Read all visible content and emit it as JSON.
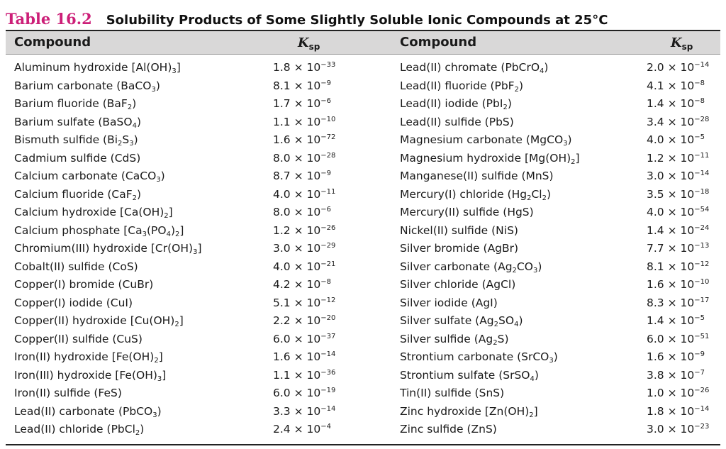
{
  "table": {
    "number": "Table 16.2",
    "title": "Solubility Products of Some Slightly Soluble Ionic Compounds at 25°C",
    "headers": {
      "compound": "Compound",
      "ksp_symbol": "K",
      "ksp_sub": "sp"
    },
    "left": [
      {
        "compound": "Aluminum hydroxide [Al(OH)<sub>3</sub>]",
        "ksp": "1.8 × 10<sup>−33</sup>"
      },
      {
        "compound": "Barium carbonate (BaCO<sub>3</sub>)",
        "ksp": "8.1 × 10<sup>−9</sup>"
      },
      {
        "compound": "Barium fluoride (BaF<sub>2</sub>)",
        "ksp": "1.7 × 10<sup>−6</sup>"
      },
      {
        "compound": "Barium sulfate (BaSO<sub>4</sub>)",
        "ksp": "1.1 × 10<sup>−10</sup>"
      },
      {
        "compound": "Bismuth sulfide (Bi<sub>2</sub>S<sub>3</sub>)",
        "ksp": "1.6 × 10<sup>−72</sup>"
      },
      {
        "compound": "Cadmium sulfide (CdS)",
        "ksp": "8.0 × 10<sup>−28</sup>"
      },
      {
        "compound": "Calcium carbonate (CaCO<sub>3</sub>)",
        "ksp": "8.7 × 10<sup>−9</sup>"
      },
      {
        "compound": "Calcium fluoride (CaF<sub>2</sub>)",
        "ksp": "4.0 × 10<sup>−11</sup>"
      },
      {
        "compound": "Calcium hydroxide [Ca(OH)<sub>2</sub>]",
        "ksp": "8.0 × 10<sup>−6</sup>"
      },
      {
        "compound": "Calcium phosphate [Ca<sub>3</sub>(PO<sub>4</sub>)<sub>2</sub>]",
        "ksp": "1.2 × 10<sup>−26</sup>"
      },
      {
        "compound": "Chromium(III) hydroxide [Cr(OH)<sub>3</sub>]",
        "ksp": "3.0 × 10<sup>−29</sup>"
      },
      {
        "compound": "Cobalt(II) sulfide (CoS)",
        "ksp": "4.0 × 10<sup>−21</sup>"
      },
      {
        "compound": "Copper(I) bromide (CuBr)",
        "ksp": "4.2 × 10<sup>−8</sup>"
      },
      {
        "compound": "Copper(I) iodide (CuI)",
        "ksp": "5.1 × 10<sup>−12</sup>"
      },
      {
        "compound": "Copper(II) hydroxide [Cu(OH)<sub>2</sub>]",
        "ksp": "2.2 × 10<sup>−20</sup>"
      },
      {
        "compound": "Copper(II) sulfide (CuS)",
        "ksp": "6.0 × 10<sup>−37</sup>"
      },
      {
        "compound": "Iron(II) hydroxide [Fe(OH)<sub>2</sub>]",
        "ksp": "1.6 × 10<sup>−14</sup>"
      },
      {
        "compound": "Iron(III) hydroxide [Fe(OH)<sub>3</sub>]",
        "ksp": "1.1 × 10<sup>−36</sup>"
      },
      {
        "compound": "Iron(II) sulfide (FeS)",
        "ksp": "6.0 × 10<sup>−19</sup>"
      },
      {
        "compound": "Lead(II) carbonate (PbCO<sub>3</sub>)",
        "ksp": "3.3 × 10<sup>−14</sup>"
      },
      {
        "compound": "Lead(II) chloride (PbCl<sub>2</sub>)",
        "ksp": "2.4 × 10<sup>−4</sup>"
      }
    ],
    "right": [
      {
        "compound": "Lead(II) chromate (PbCrO<sub>4</sub>)",
        "ksp": "2.0 × 10<sup>−14</sup>"
      },
      {
        "compound": "Lead(II) fluoride (PbF<sub>2</sub>)",
        "ksp": "4.1 × 10<sup>−8</sup>"
      },
      {
        "compound": "Lead(II) iodide (PbI<sub>2</sub>)",
        "ksp": "1.4 × 10<sup>−8</sup>"
      },
      {
        "compound": "Lead(II) sulfide (PbS)",
        "ksp": "3.4 × 10<sup>−28</sup>"
      },
      {
        "compound": "Magnesium carbonate (MgCO<sub>3</sub>)",
        "ksp": "4.0 × 10<sup>−5</sup>"
      },
      {
        "compound": "Magnesium hydroxide [Mg(OH)<sub>2</sub>]",
        "ksp": "1.2 × 10<sup>−11</sup>"
      },
      {
        "compound": "Manganese(II) sulfide (MnS)",
        "ksp": "3.0 × 10<sup>−14</sup>"
      },
      {
        "compound": "Mercury(I) chloride (Hg<sub>2</sub>Cl<sub>2</sub>)",
        "ksp": "3.5 × 10<sup>−18</sup>"
      },
      {
        "compound": "Mercury(II) sulfide (HgS)",
        "ksp": "4.0 × 10<sup>−54</sup>"
      },
      {
        "compound": "Nickel(II) sulfide (NiS)",
        "ksp": "1.4 × 10<sup>−24</sup>"
      },
      {
        "compound": "Silver bromide (AgBr)",
        "ksp": "7.7 × 10<sup>−13</sup>"
      },
      {
        "compound": "Silver carbonate (Ag<sub>2</sub>CO<sub>3</sub>)",
        "ksp": "8.1 × 10<sup>−12</sup>"
      },
      {
        "compound": "Silver chloride (AgCl)",
        "ksp": "1.6 × 10<sup>−10</sup>"
      },
      {
        "compound": "Silver iodide (AgI)",
        "ksp": "8.3 × 10<sup>−17</sup>"
      },
      {
        "compound": "Silver sulfate (Ag<sub>2</sub>SO<sub>4</sub>)",
        "ksp": "1.4 × 10<sup>−5</sup>"
      },
      {
        "compound": "Silver sulfide (Ag<sub>2</sub>S)",
        "ksp": "6.0 × 10<sup>−51</sup>"
      },
      {
        "compound": "Strontium carbonate (SrCO<sub>3</sub>)",
        "ksp": "1.6 × 10<sup>−9</sup>"
      },
      {
        "compound": "Strontium sulfate (SrSO<sub>4</sub>)",
        "ksp": "3.8 × 10<sup>−7</sup>"
      },
      {
        "compound": "Tin(II) sulfide (SnS)",
        "ksp": "1.0 × 10<sup>−26</sup>"
      },
      {
        "compound": "Zinc hydroxide [Zn(OH)<sub>2</sub>]",
        "ksp": "1.8 × 10<sup>−14</sup>"
      },
      {
        "compound": "Zinc sulfide (ZnS)",
        "ksp": "3.0 × 10<sup>−23</sup>"
      }
    ]
  }
}
